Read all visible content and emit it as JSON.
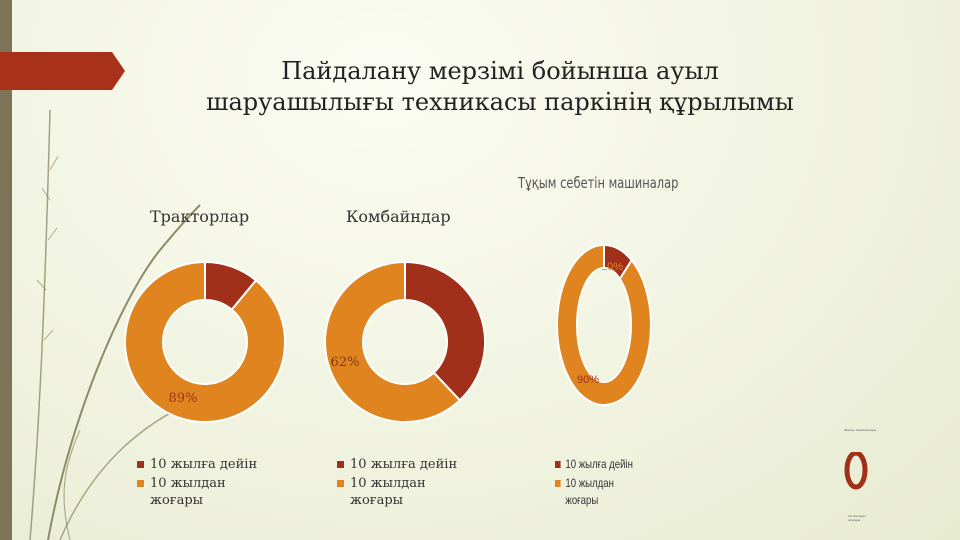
{
  "slide": {
    "title": "Пайдалану мерзімі бойынша ауыл шаруашылығы техникасы паркінің құрылымы",
    "colors": {
      "accent": "#a8311a",
      "sidebar": "#7d7457",
      "dark_red": "#a0301a",
      "orange": "#e0841f"
    }
  },
  "chart_data": [
    {
      "type": "pie",
      "title": "Тракторлар",
      "categories": [
        "10 жылға дейін",
        "10 жылдан жоғары"
      ],
      "values": [
        11,
        89
      ],
      "labels": [
        "11%",
        "89%"
      ],
      "colors": [
        "#a0301a",
        "#e0841f"
      ],
      "donut": true
    },
    {
      "type": "pie",
      "title": "Комбайндар",
      "categories": [
        "10 жылға дейін",
        "10 жылдан жоғары"
      ],
      "values": [
        38,
        62
      ],
      "labels": [
        "38%",
        "62%"
      ],
      "colors": [
        "#a0301a",
        "#e0841f"
      ],
      "donut": true
    },
    {
      "type": "pie",
      "title": "Тұқым себетін машиналар",
      "categories": [
        "10 жылға дейін",
        "10 жылдан жоғары"
      ],
      "values": [
        10,
        90
      ],
      "labels": [
        "10%",
        "90%"
      ],
      "colors": [
        "#a0301a",
        "#e0841f"
      ],
      "donut": true
    }
  ],
  "legends": [
    {
      "items": [
        "10 жылға дейін",
        "10 жылдан жоғары"
      ]
    },
    {
      "items": [
        "10 жылға дейін",
        "10 жылдан жоғары"
      ]
    },
    {
      "items": [
        "10 жылға дейін",
        "10 жылдан жоғары"
      ]
    }
  ],
  "mini_chart": {
    "title": "Жинау машиналары",
    "legend": "10 жылдан жоғары"
  }
}
